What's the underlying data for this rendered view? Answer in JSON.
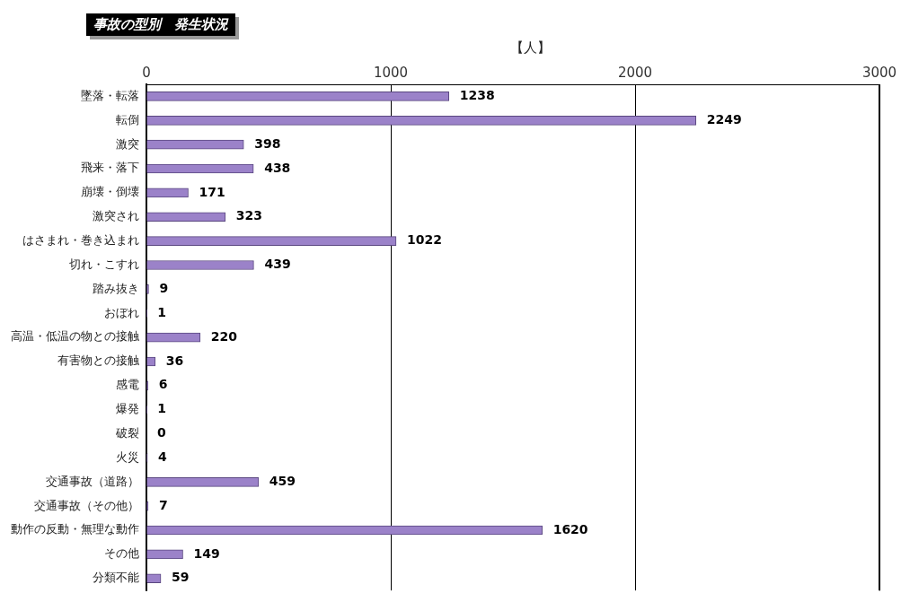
{
  "chart_data": {
    "type": "bar",
    "orientation": "horizontal",
    "title": "事故の型別　発生状況",
    "xlabel": "【人】",
    "categories": [
      "墜落・転落",
      "転倒",
      "激突",
      "飛来・落下",
      "崩壊・倒壊",
      "激突され",
      "はさまれ・巻き込まれ",
      "切れ・こすれ",
      "踏み抜き",
      "おぼれ",
      "高温・低温の物との接触",
      "有害物との接触",
      "感電",
      "爆発",
      "破裂",
      "火災",
      "交通事故（道路）",
      "交通事故（その他）",
      "動作の反動・無理な動作",
      "その他",
      "分類不能"
    ],
    "values": [
      1238,
      2249,
      398,
      438,
      171,
      323,
      1022,
      439,
      9,
      1,
      220,
      36,
      6,
      1,
      0,
      4,
      459,
      7,
      1620,
      149,
      59
    ],
    "color": "#9b82c9",
    "xlim": [
      0,
      3000
    ],
    "xticks": [
      0,
      1000,
      2000,
      3000
    ],
    "grid": "x",
    "data_labels": true
  }
}
